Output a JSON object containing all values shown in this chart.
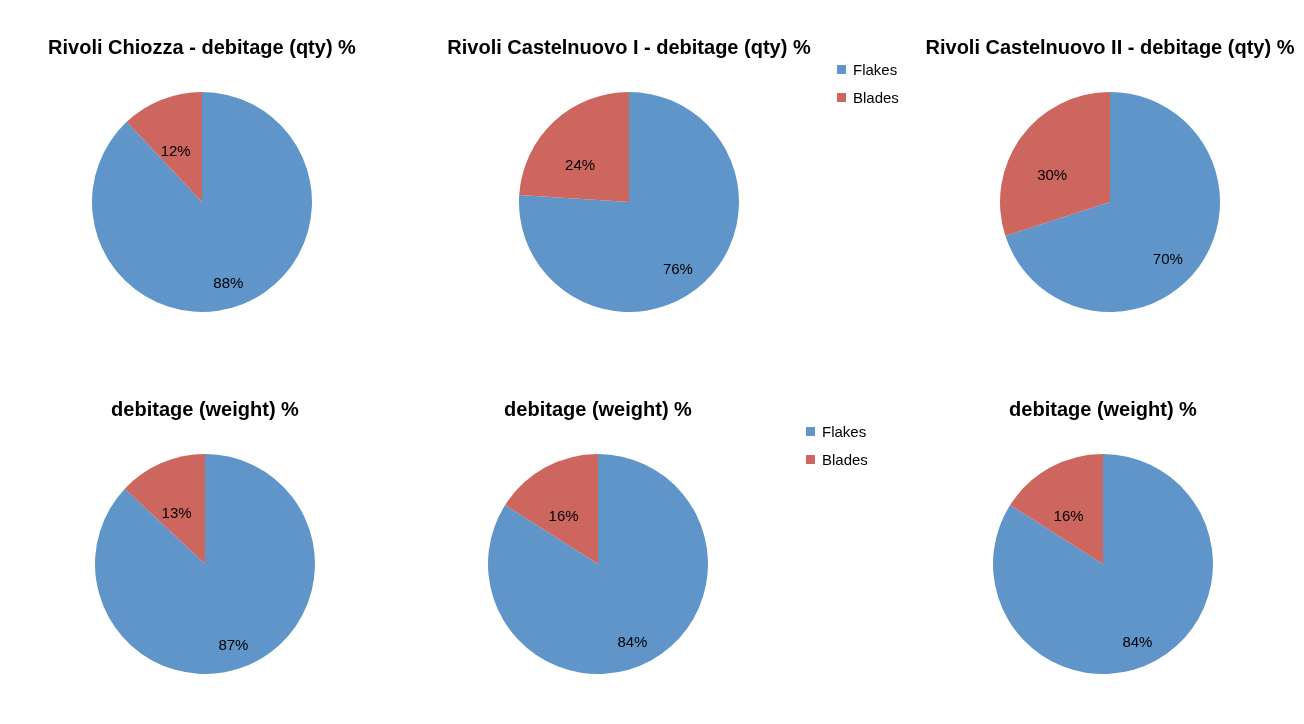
{
  "chart_data": [
    {
      "type": "pie",
      "title": "Rivoli Chiozza - debitage (qty) %",
      "categories": [
        null,
        null
      ],
      "values": [
        88,
        12
      ],
      "colors": [
        "#5f95c9",
        "#cd665e"
      ],
      "value_labels": [
        "88%",
        "12%"
      ],
      "legend": false
    },
    {
      "type": "pie",
      "title": "Rivoli Castelnuovo I - debitage (qty) %",
      "categories": [
        "Flakes",
        "Blades"
      ],
      "values": [
        76,
        24
      ],
      "colors": [
        "#5f95c9",
        "#cd665e"
      ],
      "value_labels": [
        "76%",
        "24%"
      ],
      "legend": "right"
    },
    {
      "type": "pie",
      "title": "Rivoli Castelnuovo II - debitage (qty) %",
      "categories": [
        null,
        null
      ],
      "values": [
        70,
        30
      ],
      "colors": [
        "#5f95c9",
        "#cd665e"
      ],
      "value_labels": [
        "70%",
        "30%"
      ],
      "legend": false
    },
    {
      "type": "pie",
      "title": "debitage (weight) %",
      "categories": [
        null,
        null
      ],
      "values": [
        87,
        13
      ],
      "colors": [
        "#5f95c9",
        "#cd665e"
      ],
      "value_labels": [
        "87%",
        "13%"
      ],
      "legend": false
    },
    {
      "type": "pie",
      "title": "debitage (weight) %",
      "categories": [
        "Flakes",
        "Blades"
      ],
      "values": [
        84,
        16
      ],
      "colors": [
        "#5f95c9",
        "#cd665e"
      ],
      "value_labels": [
        "84%",
        "16%"
      ],
      "legend": "right"
    },
    {
      "type": "pie",
      "title": "debitage (weight) %",
      "categories": [
        null,
        null
      ],
      "values": [
        84,
        16
      ],
      "colors": [
        "#5f95c9",
        "#cd665e"
      ],
      "value_labels": [
        "84%",
        "16%"
      ],
      "legend": false
    }
  ]
}
